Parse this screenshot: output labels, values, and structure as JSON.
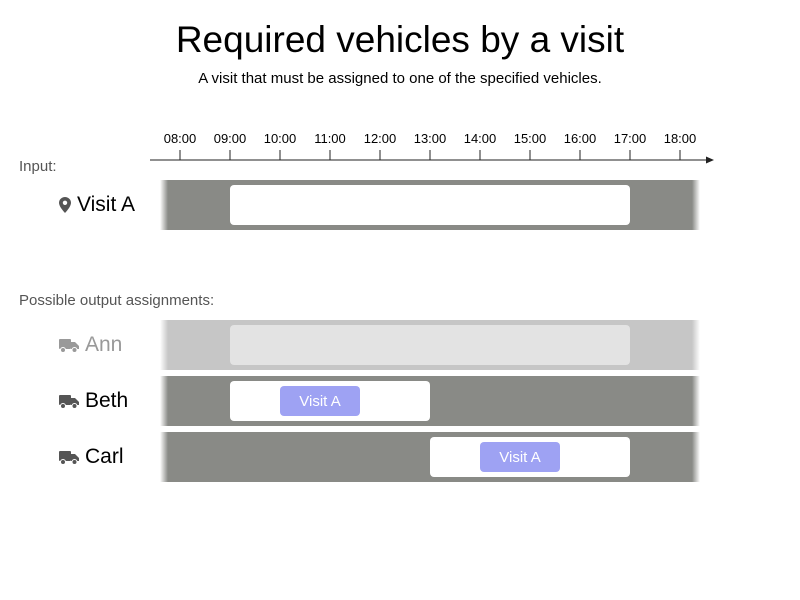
{
  "title": "Required vehicles by a visit",
  "subtitle": "A visit that must be assigned to one of the specified vehicles.",
  "timeline": {
    "ticks": [
      "08:00",
      "09:00",
      "10:00",
      "11:00",
      "12:00",
      "13:00",
      "14:00",
      "15:00",
      "16:00",
      "17:00",
      "18:00"
    ]
  },
  "input": {
    "section_label": "Input:",
    "visit": {
      "label": "Visit A",
      "icon": "map-pin-icon",
      "time_window": [
        "09:00",
        "17:00"
      ]
    }
  },
  "output": {
    "section_label": "Possible output assignments:",
    "vehicles": [
      {
        "name": "Ann",
        "icon": "truck-icon",
        "state": "not allowed (greyed out)",
        "shift": [
          "09:00",
          "17:00"
        ],
        "assigned_visit": null
      },
      {
        "name": "Beth",
        "icon": "truck-icon",
        "state": "allowed",
        "shift": [
          "09:00",
          "13:00"
        ],
        "assigned_visit": {
          "label": "Visit A",
          "start": "10:00",
          "end": "11:36"
        }
      },
      {
        "name": "Carl",
        "icon": "truck-icon",
        "state": "allowed",
        "shift": [
          "13:00",
          "17:00"
        ],
        "assigned_visit": {
          "label": "Visit A",
          "start": "14:00",
          "end": "15:36"
        }
      }
    ]
  },
  "colors": {
    "row_background": "#898a86",
    "row_background_disabled": "#c6c6c6",
    "time_window": "#ffffff",
    "time_window_disabled": "#e3e3e3",
    "visit_chip": "#9ea2f3",
    "icon": "#555555",
    "icon_disabled": "#999999"
  }
}
